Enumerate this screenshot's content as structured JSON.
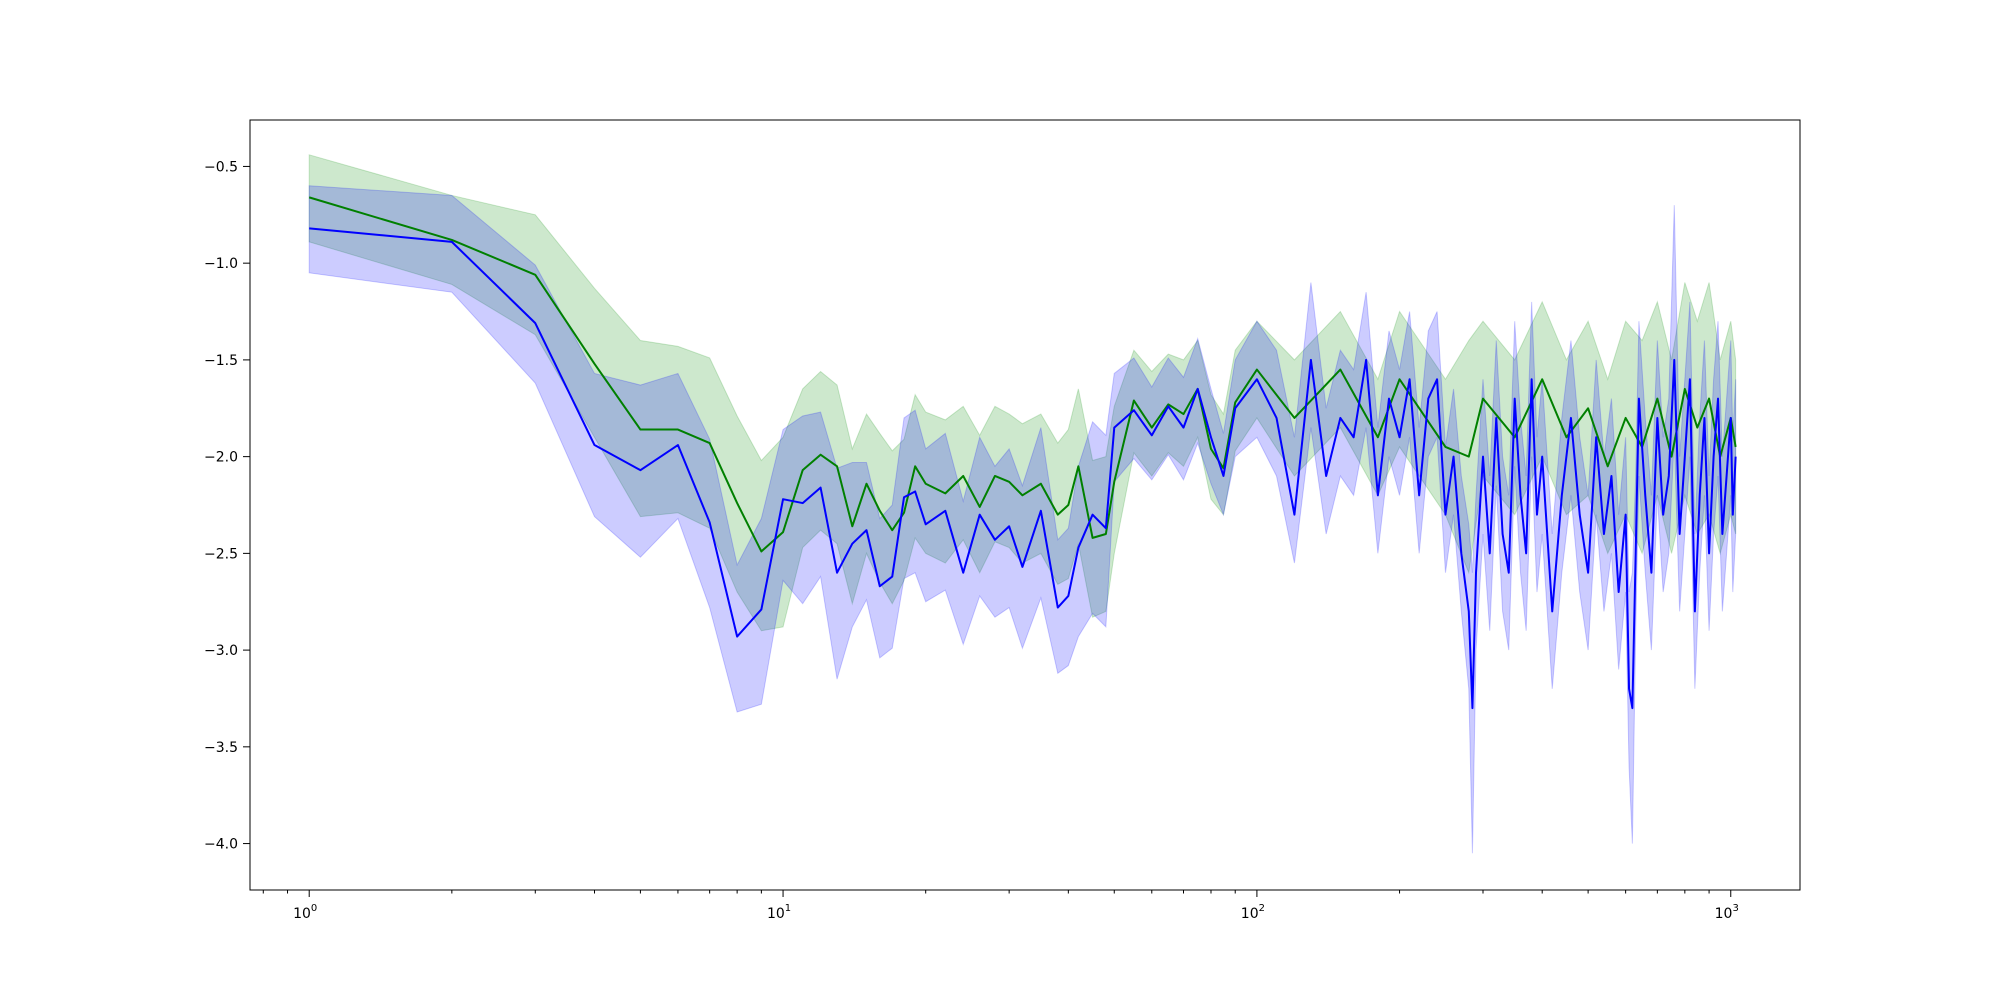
{
  "chart_data": {
    "type": "line",
    "title": "",
    "xlabel": "",
    "ylabel": "",
    "xscale": "log",
    "xlim": [
      0.75,
      1400
    ],
    "ylim": [
      -4.24,
      -0.26
    ],
    "grid": false,
    "legend": "none",
    "x_ticks": [
      {
        "value": 1,
        "label": "10",
        "exp": "0"
      },
      {
        "value": 10,
        "label": "10",
        "exp": "1"
      },
      {
        "value": 100,
        "label": "10",
        "exp": "2"
      },
      {
        "value": 1000,
        "label": "10",
        "exp": "3"
      }
    ],
    "y_ticks": [
      {
        "value": -0.5,
        "label": "−0.5"
      },
      {
        "value": -1.0,
        "label": "−1.0"
      },
      {
        "value": -1.5,
        "label": "−1.5"
      },
      {
        "value": -2.0,
        "label": "−2.0"
      },
      {
        "value": -2.5,
        "label": "−2.5"
      },
      {
        "value": -3.0,
        "label": "−3.0"
      },
      {
        "value": -3.5,
        "label": "−3.5"
      },
      {
        "value": -4.0,
        "label": "−4.0"
      }
    ],
    "series": [
      {
        "color": "#008000",
        "band_color": "#2ca02c",
        "band_opacity": 0.24,
        "x": [
          1,
          2,
          3,
          4,
          5,
          6,
          7,
          8,
          9,
          10,
          11,
          12,
          13,
          14,
          15,
          16,
          17,
          18,
          19,
          20,
          22,
          24,
          26,
          28,
          30,
          32,
          35,
          38,
          40,
          42,
          45,
          48,
          50,
          55,
          60,
          65,
          70,
          75,
          80,
          85,
          90,
          100,
          120,
          150,
          180,
          200,
          250,
          280,
          300,
          350,
          400,
          450,
          500,
          550,
          600,
          650,
          700,
          750,
          800,
          850,
          900,
          950,
          1000,
          1024
        ],
        "y": [
          -0.66,
          -0.88,
          -1.06,
          -1.52,
          -1.86,
          -1.86,
          -1.93,
          -2.24,
          -2.49,
          -2.39,
          -2.07,
          -1.99,
          -2.05,
          -2.36,
          -2.14,
          -2.28,
          -2.38,
          -2.29,
          -2.05,
          -2.14,
          -2.19,
          -2.1,
          -2.26,
          -2.1,
          -2.13,
          -2.2,
          -2.14,
          -2.3,
          -2.25,
          -2.05,
          -2.42,
          -2.4,
          -2.13,
          -1.71,
          -1.85,
          -1.73,
          -1.78,
          -1.65,
          -1.96,
          -2.06,
          -1.72,
          -1.55,
          -1.8,
          -1.55,
          -1.9,
          -1.6,
          -1.95,
          -2.0,
          -1.7,
          -1.9,
          -1.6,
          -1.9,
          -1.75,
          -2.05,
          -1.8,
          -1.95,
          -1.7,
          -2.0,
          -1.65,
          -1.85,
          -1.7,
          -2.0,
          -1.8,
          -1.95
        ],
        "lo": [
          -0.89,
          -1.11,
          -1.37,
          -1.9,
          -2.31,
          -2.29,
          -2.37,
          -2.7,
          -2.9,
          -2.88,
          -2.47,
          -2.38,
          -2.45,
          -2.76,
          -2.5,
          -2.65,
          -2.76,
          -2.64,
          -2.42,
          -2.5,
          -2.55,
          -2.43,
          -2.6,
          -2.44,
          -2.47,
          -2.55,
          -2.5,
          -2.66,
          -2.63,
          -2.45,
          -2.83,
          -2.8,
          -2.5,
          -1.98,
          -2.1,
          -1.98,
          -2.05,
          -1.9,
          -2.22,
          -2.3,
          -1.97,
          -1.8,
          -2.1,
          -1.85,
          -2.2,
          -1.95,
          -2.3,
          -2.6,
          -2.1,
          -2.3,
          -2.0,
          -2.3,
          -2.2,
          -2.5,
          -2.3,
          -2.5,
          -2.2,
          -2.5,
          -2.2,
          -2.4,
          -2.3,
          -2.5,
          -2.3,
          -2.4
        ],
        "hi": [
          -0.44,
          -0.65,
          -0.75,
          -1.13,
          -1.4,
          -1.43,
          -1.49,
          -1.79,
          -2.02,
          -1.9,
          -1.65,
          -1.56,
          -1.63,
          -1.96,
          -1.78,
          -1.88,
          -1.97,
          -1.91,
          -1.68,
          -1.77,
          -1.81,
          -1.74,
          -1.89,
          -1.74,
          -1.78,
          -1.83,
          -1.78,
          -1.93,
          -1.86,
          -1.65,
          -2.02,
          -2.0,
          -1.74,
          -1.45,
          -1.56,
          -1.47,
          -1.5,
          -1.4,
          -1.68,
          -1.78,
          -1.45,
          -1.3,
          -1.5,
          -1.25,
          -1.6,
          -1.25,
          -1.6,
          -1.4,
          -1.3,
          -1.5,
          -1.2,
          -1.5,
          -1.3,
          -1.6,
          -1.3,
          -1.4,
          -1.2,
          -1.5,
          -1.1,
          -1.3,
          -1.1,
          -1.5,
          -1.3,
          -1.5
        ]
      },
      {
        "color": "#0000ff",
        "band_color": "#0000ff",
        "band_opacity": 0.2,
        "x": [
          1,
          2,
          3,
          4,
          5,
          6,
          7,
          8,
          9,
          10,
          11,
          12,
          13,
          14,
          15,
          16,
          17,
          18,
          19,
          20,
          22,
          24,
          26,
          28,
          30,
          32,
          35,
          38,
          40,
          42,
          45,
          48,
          50,
          55,
          60,
          65,
          70,
          75,
          80,
          85,
          90,
          100,
          110,
          120,
          130,
          140,
          150,
          160,
          170,
          180,
          190,
          200,
          210,
          220,
          230,
          240,
          250,
          260,
          270,
          280,
          285,
          290,
          300,
          310,
          320,
          330,
          340,
          350,
          360,
          370,
          380,
          390,
          400,
          420,
          440,
          460,
          480,
          500,
          520,
          540,
          560,
          580,
          600,
          610,
          620,
          630,
          640,
          660,
          680,
          700,
          720,
          740,
          760,
          780,
          800,
          820,
          840,
          860,
          880,
          900,
          920,
          940,
          960,
          980,
          1000,
          1010,
          1024
        ],
        "y": [
          -0.82,
          -0.89,
          -1.31,
          -1.94,
          -2.07,
          -1.94,
          -2.34,
          -2.93,
          -2.79,
          -2.22,
          -2.24,
          -2.16,
          -2.6,
          -2.45,
          -2.38,
          -2.67,
          -2.62,
          -2.21,
          -2.18,
          -2.35,
          -2.28,
          -2.6,
          -2.3,
          -2.43,
          -2.36,
          -2.57,
          -2.28,
          -2.78,
          -2.72,
          -2.47,
          -2.3,
          -2.37,
          -1.85,
          -1.76,
          -1.89,
          -1.74,
          -1.85,
          -1.65,
          -1.9,
          -2.1,
          -1.75,
          -1.6,
          -1.8,
          -2.3,
          -1.5,
          -2.1,
          -1.8,
          -1.9,
          -1.5,
          -2.2,
          -1.7,
          -1.9,
          -1.6,
          -2.2,
          -1.7,
          -1.6,
          -2.3,
          -2.0,
          -2.5,
          -2.8,
          -3.3,
          -2.6,
          -2.0,
          -2.5,
          -1.8,
          -2.4,
          -2.6,
          -1.7,
          -2.2,
          -2.5,
          -1.6,
          -2.3,
          -2.0,
          -2.8,
          -2.2,
          -1.8,
          -2.3,
          -2.6,
          -1.9,
          -2.4,
          -2.1,
          -2.7,
          -2.3,
          -3.2,
          -3.3,
          -2.5,
          -1.7,
          -2.2,
          -2.6,
          -1.8,
          -2.3,
          -2.1,
          -1.5,
          -2.4,
          -2.0,
          -1.6,
          -2.8,
          -2.2,
          -1.8,
          -2.5,
          -2.0,
          -1.7,
          -2.4,
          -2.1,
          -1.8,
          -2.3,
          -2.0
        ],
        "lo": [
          -1.05,
          -1.15,
          -1.62,
          -2.31,
          -2.52,
          -2.32,
          -2.78,
          -3.32,
          -3.28,
          -2.64,
          -2.76,
          -2.62,
          -3.15,
          -2.88,
          -2.74,
          -3.04,
          -2.99,
          -2.63,
          -2.6,
          -2.75,
          -2.69,
          -2.97,
          -2.72,
          -2.83,
          -2.78,
          -2.99,
          -2.73,
          -3.12,
          -3.08,
          -2.93,
          -2.81,
          -2.88,
          -2.13,
          -2.01,
          -2.12,
          -1.99,
          -2.12,
          -1.93,
          -2.14,
          -2.3,
          -2.0,
          -1.9,
          -2.1,
          -2.55,
          -1.85,
          -2.4,
          -2.1,
          -2.2,
          -1.85,
          -2.5,
          -2.0,
          -2.2,
          -1.9,
          -2.5,
          -2.0,
          -1.9,
          -2.6,
          -2.3,
          -2.8,
          -3.2,
          -4.05,
          -3.0,
          -2.4,
          -2.9,
          -2.15,
          -2.8,
          -3.0,
          -2.05,
          -2.6,
          -2.9,
          -2.0,
          -2.7,
          -2.4,
          -3.2,
          -2.6,
          -2.2,
          -2.7,
          -3.0,
          -2.3,
          -2.8,
          -2.5,
          -3.1,
          -2.7,
          -3.6,
          -4.0,
          -2.9,
          -2.1,
          -2.6,
          -3.0,
          -2.2,
          -2.7,
          -2.5,
          -1.9,
          -2.8,
          -2.4,
          -2.0,
          -3.2,
          -2.6,
          -2.2,
          -2.9,
          -2.4,
          -2.1,
          -2.8,
          -2.5,
          -2.2,
          -2.7,
          -2.4
        ],
        "hi": [
          -0.6,
          -0.65,
          -1.01,
          -1.57,
          -1.63,
          -1.57,
          -1.91,
          -2.56,
          -2.32,
          -1.86,
          -1.79,
          -1.77,
          -2.06,
          -2.03,
          -2.03,
          -2.32,
          -2.25,
          -1.8,
          -1.76,
          -1.96,
          -1.88,
          -2.23,
          -1.9,
          -2.05,
          -1.96,
          -2.15,
          -1.85,
          -2.43,
          -2.37,
          -2.05,
          -1.82,
          -1.89,
          -1.57,
          -1.49,
          -1.64,
          -1.49,
          -1.59,
          -1.39,
          -1.65,
          -1.88,
          -1.5,
          -1.3,
          -1.45,
          -1.9,
          -1.1,
          -1.75,
          -1.45,
          -1.55,
          -1.15,
          -1.85,
          -1.35,
          -1.55,
          -1.25,
          -1.85,
          -1.35,
          -1.25,
          -1.95,
          -1.65,
          -2.1,
          -2.35,
          -2.6,
          -2.2,
          -1.6,
          -2.1,
          -1.4,
          -2.0,
          -2.2,
          -1.3,
          -1.8,
          -2.1,
          -1.2,
          -1.9,
          -1.6,
          -2.4,
          -1.8,
          -1.4,
          -1.9,
          -2.2,
          -1.5,
          -2.0,
          -1.7,
          -2.3,
          -1.9,
          -2.7,
          -2.6,
          -2.1,
          -1.3,
          -1.8,
          -2.2,
          -1.4,
          -1.9,
          -1.7,
          -0.7,
          -2.0,
          -1.6,
          -1.2,
          -2.4,
          -1.8,
          -1.4,
          -2.1,
          -1.6,
          -1.3,
          -2.0,
          -1.7,
          -1.4,
          -1.9,
          -1.6
        ]
      }
    ]
  }
}
